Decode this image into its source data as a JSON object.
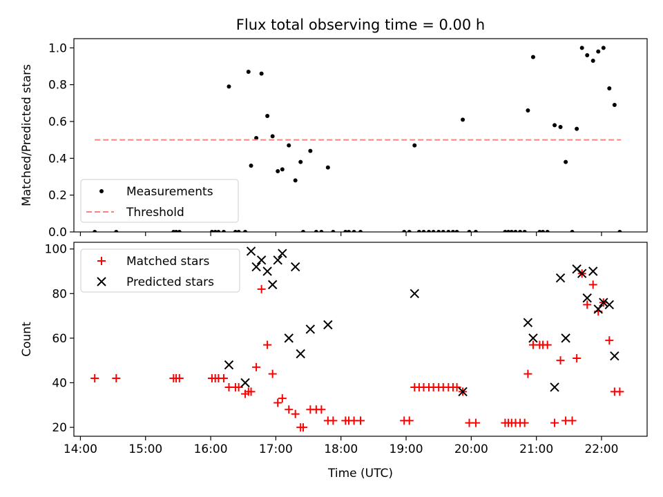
{
  "figure": {
    "title": "Flux total observing time = 0.00 h"
  },
  "chart_data": [
    {
      "type": "scatter",
      "panel": "top",
      "ylabel": "Matched/Predicted stars",
      "xlabel": "",
      "xlim": [
        13.9,
        22.7
      ],
      "ylim": [
        0,
        1.05
      ],
      "yticks": [
        "0.0",
        "0.2",
        "0.4",
        "0.6",
        "0.8",
        "1.0"
      ],
      "ytick_values": [
        0,
        0.2,
        0.4,
        0.6,
        0.8,
        1.0
      ],
      "grid": false,
      "legend_position": "lower-left",
      "legend": [
        "Measurements",
        "Threshold"
      ],
      "series": [
        {
          "name": "Measurements",
          "marker": "dot",
          "color": "#000000",
          "x": [
            14.22,
            14.55,
            15.43,
            15.47,
            15.52,
            16.02,
            16.07,
            16.12,
            16.2,
            16.28,
            16.38,
            16.43,
            16.53,
            16.58,
            16.62,
            16.7,
            16.78,
            16.87,
            16.95,
            17.03,
            17.1,
            17.2,
            17.3,
            17.38,
            17.42,
            17.53,
            17.62,
            17.7,
            17.8,
            17.88,
            18.07,
            18.12,
            18.2,
            18.3,
            18.97,
            19.05,
            19.13,
            19.2,
            19.27,
            19.35,
            19.42,
            19.5,
            19.57,
            19.65,
            19.72,
            19.78,
            19.87,
            19.97,
            20.07,
            20.52,
            20.57,
            20.62,
            20.68,
            20.75,
            20.82,
            20.87,
            20.95,
            21.05,
            21.1,
            21.17,
            21.28,
            21.37,
            21.45,
            21.55,
            21.62,
            21.7,
            21.78,
            21.87,
            21.95,
            22.03,
            22.12,
            22.2,
            22.28
          ],
          "y": [
            0,
            0,
            0,
            0,
            0,
            0,
            0,
            0,
            0,
            0.79,
            0,
            0,
            0,
            0.87,
            0.36,
            0.51,
            0.86,
            0.63,
            0.52,
            0.33,
            0.34,
            0.47,
            0.28,
            0.38,
            0,
            0.44,
            0,
            0,
            0.35,
            0,
            0,
            0,
            0,
            0,
            0,
            0,
            0.47,
            0,
            0,
            0,
            0,
            0,
            0,
            0,
            0,
            0,
            0.61,
            0,
            0,
            0,
            0,
            0,
            0,
            0,
            0,
            0.66,
            0.95,
            0,
            0,
            0,
            0.58,
            0.57,
            0.38,
            0,
            0.56,
            1.0,
            0.96,
            0.93,
            0.98,
            1.0,
            0.78,
            0.69,
            0
          ]
        },
        {
          "name": "Threshold",
          "style": "dashed",
          "color": "#ff7f7f",
          "x": [
            14.22,
            22.3
          ],
          "y": [
            0.5,
            0.5
          ]
        }
      ]
    },
    {
      "type": "scatter",
      "panel": "bottom",
      "ylabel": "Count",
      "xlabel": "Time (UTC)",
      "xlim": [
        13.9,
        22.7
      ],
      "ylim": [
        16,
        103
      ],
      "yticks": [
        "20",
        "40",
        "60",
        "80",
        "100"
      ],
      "ytick_values": [
        20,
        40,
        60,
        80,
        100
      ],
      "xticks": [
        "14:00",
        "15:00",
        "16:00",
        "17:00",
        "18:00",
        "19:00",
        "20:00",
        "21:00",
        "22:00"
      ],
      "xtick_values": [
        14,
        15,
        16,
        17,
        18,
        19,
        20,
        21,
        22
      ],
      "grid": false,
      "legend_position": "upper-left",
      "legend": [
        "Matched stars",
        "Predicted stars"
      ],
      "series": [
        {
          "name": "Matched stars",
          "marker": "plus",
          "color": "#ff0000",
          "x": [
            14.22,
            14.55,
            15.43,
            15.47,
            15.52,
            16.02,
            16.07,
            16.12,
            16.2,
            16.28,
            16.38,
            16.43,
            16.53,
            16.58,
            16.62,
            16.7,
            16.78,
            16.87,
            16.95,
            17.03,
            17.1,
            17.2,
            17.3,
            17.38,
            17.42,
            17.53,
            17.62,
            17.7,
            17.8,
            17.88,
            18.07,
            18.12,
            18.2,
            18.3,
            18.97,
            19.05,
            19.13,
            19.2,
            19.27,
            19.35,
            19.42,
            19.5,
            19.57,
            19.65,
            19.72,
            19.78,
            19.87,
            19.97,
            20.07,
            20.52,
            20.57,
            20.62,
            20.68,
            20.75,
            20.82,
            20.87,
            20.95,
            21.05,
            21.1,
            21.17,
            21.28,
            21.37,
            21.45,
            21.55,
            21.62,
            21.7,
            21.78,
            21.87,
            21.95,
            22.03,
            22.12,
            22.2,
            22.28
          ],
          "y": [
            42,
            42,
            42,
            42,
            42,
            42,
            42,
            42,
            42,
            38,
            38,
            38,
            35,
            36,
            36,
            47,
            82,
            57,
            44,
            31,
            33,
            28,
            26,
            20,
            20,
            28,
            28,
            28,
            23,
            23,
            23,
            23,
            23,
            23,
            23,
            23,
            38,
            38,
            38,
            38,
            38,
            38,
            38,
            38,
            38,
            38,
            36,
            22,
            22,
            22,
            22,
            22,
            22,
            22,
            22,
            44,
            57,
            57,
            57,
            57,
            22,
            50,
            23,
            23,
            51,
            89,
            75,
            84,
            72,
            76,
            59,
            36,
            36
          ]
        },
        {
          "name": "Predicted stars",
          "marker": "x",
          "color": "#000000",
          "x": [
            16.28,
            16.53,
            16.62,
            16.7,
            16.78,
            16.87,
            16.95,
            17.03,
            17.1,
            17.2,
            17.3,
            17.38,
            17.53,
            17.8,
            19.13,
            19.87,
            20.87,
            20.95,
            21.28,
            21.37,
            21.45,
            21.62,
            21.7,
            21.78,
            21.87,
            21.95,
            22.03,
            22.12,
            22.2
          ],
          "y": [
            48,
            40,
            99,
            92,
            95,
            90,
            84,
            95,
            98,
            60,
            92,
            53,
            64,
            66,
            80,
            36,
            67,
            60,
            38,
            87,
            60,
            91,
            89,
            78,
            90,
            73,
            76,
            75,
            52
          ]
        }
      ]
    }
  ]
}
